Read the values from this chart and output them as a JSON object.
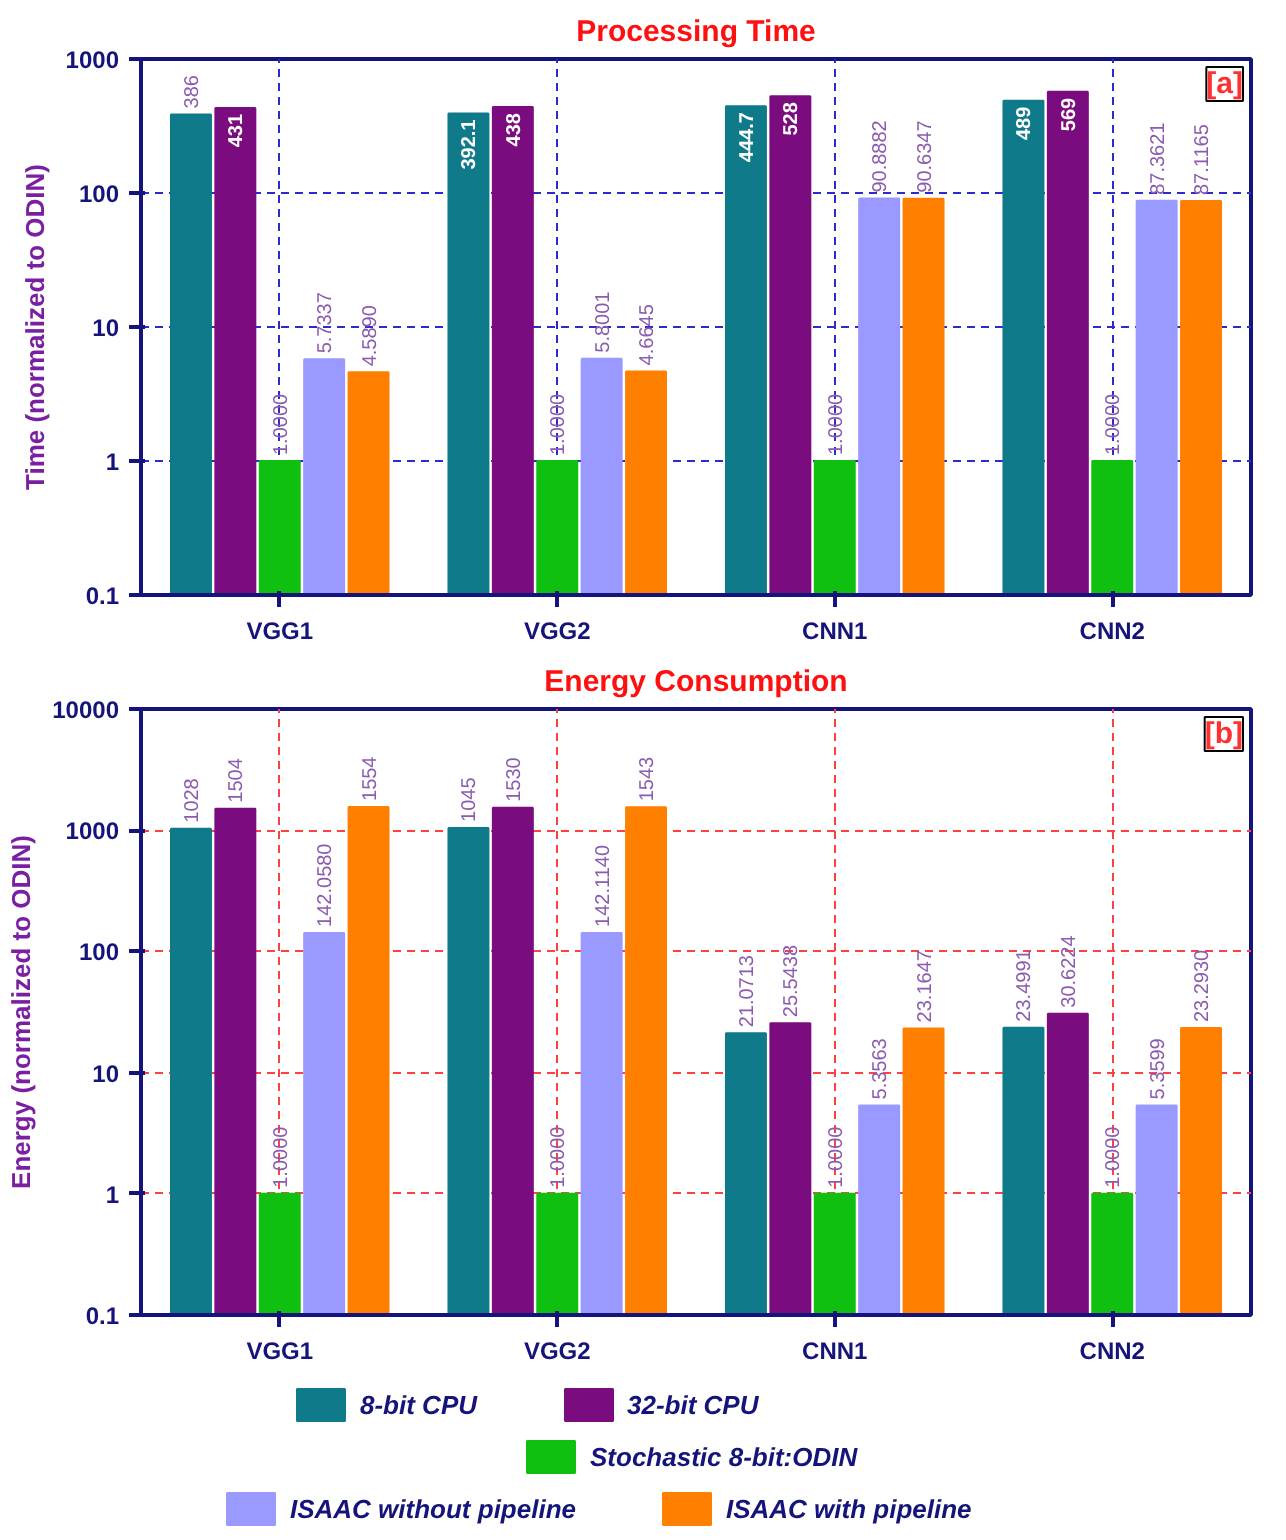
{
  "chart_data": [
    {
      "type": "bar",
      "title": "Processing Time",
      "ylabel": "Time (normalized to ODIN)",
      "categories": [
        "VGG1",
        "VGG2",
        "CNN1",
        "CNN2"
      ],
      "log": "y",
      "ylim": [
        0.1,
        1000
      ],
      "yticks": [
        0.1,
        1,
        10,
        100,
        1000
      ],
      "grid": true,
      "legend": false,
      "data_labels": true,
      "annotations": [
        "[a]"
      ],
      "series": [
        {
          "color": "#0e7a8a",
          "values": [
            386,
            392.1,
            444.7,
            489
          ]
        },
        {
          "color": "#7b0c7f",
          "values": [
            431,
            438,
            528,
            569
          ]
        },
        {
          "color": "#10c010",
          "values": [
            1.0,
            1.0,
            1.0,
            1.0
          ],
          "value_labels": [
            "1.0000",
            "1.0000",
            "1.0000",
            "1.0000"
          ]
        },
        {
          "color": "#9999ff",
          "values": [
            5.7337,
            5.8001,
            90.8882,
            87.3621
          ]
        },
        {
          "color": "#ff8000",
          "values": [
            4.589,
            4.6645,
            90.6347,
            87.1165
          ],
          "value_labels": [
            "4.5890",
            "4.6645",
            "90.6347",
            "87.1165"
          ]
        }
      ]
    },
    {
      "type": "bar",
      "title": "Energy Consumption",
      "ylabel": "Energy (normalized to ODIN)",
      "categories": [
        "VGG1",
        "VGG2",
        "CNN1",
        "CNN2"
      ],
      "log": "y",
      "ylim": [
        0.1,
        10000
      ],
      "yticks": [
        0.1,
        1,
        10,
        100,
        1000,
        10000
      ],
      "grid": true,
      "legend": "bottom",
      "data_labels": true,
      "annotations": [
        "[b]"
      ],
      "series": [
        {
          "name": "8-bit CPU",
          "color": "#0e7a8a",
          "values": [
            1028,
            1045,
            21.0713,
            23.4991
          ]
        },
        {
          "name": "32-bit CPU",
          "color": "#7b0c7f",
          "values": [
            1504,
            1530,
            25.5438,
            30.6224
          ]
        },
        {
          "name": "Stochastic 8-bit:ODIN",
          "color": "#10c010",
          "values": [
            1.0,
            1.0,
            1.0,
            1.0
          ],
          "value_labels": [
            "1.0000",
            "1.0000",
            "1.0000",
            "1.0000"
          ]
        },
        {
          "name": "ISAAC without pipeline",
          "color": "#9999ff",
          "values": [
            142.058,
            142.114,
            5.3563,
            5.3599
          ],
          "value_labels": [
            "142.0580",
            "142.1140",
            "5.3563",
            "5.3599"
          ]
        },
        {
          "name": "ISAAC with pipeline",
          "color": "#ff8000",
          "values": [
            1554,
            1543,
            23.1647,
            23.293
          ],
          "value_labels": [
            "1554",
            "1543",
            "23.1647",
            "23.2930"
          ]
        }
      ]
    }
  ]
}
